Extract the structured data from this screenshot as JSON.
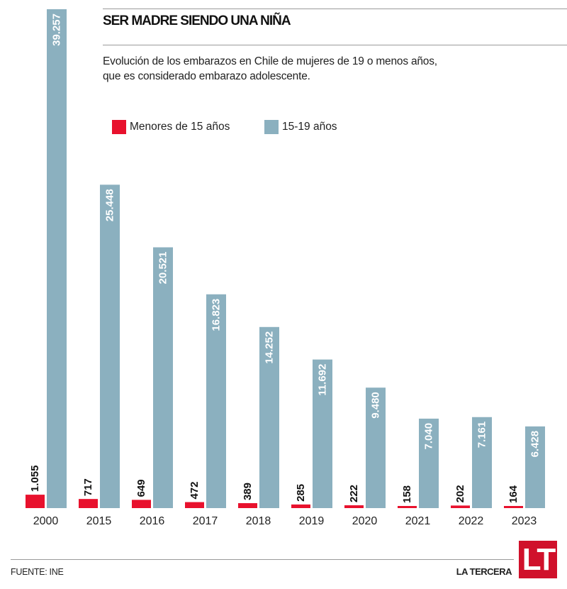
{
  "header": {
    "title": "SER MADRE SIENDO UNA NIÑA",
    "subtitle": "Evolución de los embarazos en Chile de mujeres de 19 o menos años, que es considerado embarazo adolescente."
  },
  "footer": {
    "source": "FUENTE: INE",
    "brand": "LA TERCERA",
    "logo_text": "LT"
  },
  "colors": {
    "under15": "#e8112d",
    "age15to19": "#8bb0bf",
    "logo": "#d0112b"
  },
  "chart_data": {
    "type": "bar",
    "title": "SER MADRE SIENDO UNA NIÑA",
    "subtitle": "Evolución de los embarazos en Chile de mujeres de 19 o menos años, que es considerado embarazo adolescente.",
    "xlabel": "",
    "ylabel": "",
    "categories": [
      "2000",
      "2015",
      "2016",
      "2017",
      "2018",
      "2019",
      "2020",
      "2021",
      "2022",
      "2023"
    ],
    "series": [
      {
        "name": "Menores de 15 años",
        "color": "#e8112d",
        "values": [
          1055,
          717,
          649,
          472,
          389,
          285,
          222,
          158,
          202,
          164
        ],
        "labels": [
          "1.055",
          "717",
          "649",
          "472",
          "389",
          "285",
          "222",
          "158",
          "202",
          "164"
        ]
      },
      {
        "name": "15-19 años",
        "color": "#8bb0bf",
        "values": [
          39257,
          25448,
          20521,
          16823,
          14252,
          11692,
          9480,
          7040,
          7161,
          6428
        ],
        "labels": [
          "39.257",
          "25.448",
          "20.521",
          "16.823",
          "14.252",
          "11.692",
          "9.480",
          "7.040",
          "7.161",
          "6.428"
        ]
      }
    ],
    "ylim": [
      0,
      39257
    ],
    "grid": false,
    "legend": "top-left",
    "legend_entries": [
      "Menores de 15 años",
      "15-19 años"
    ],
    "source": "FUENTE: INE"
  }
}
